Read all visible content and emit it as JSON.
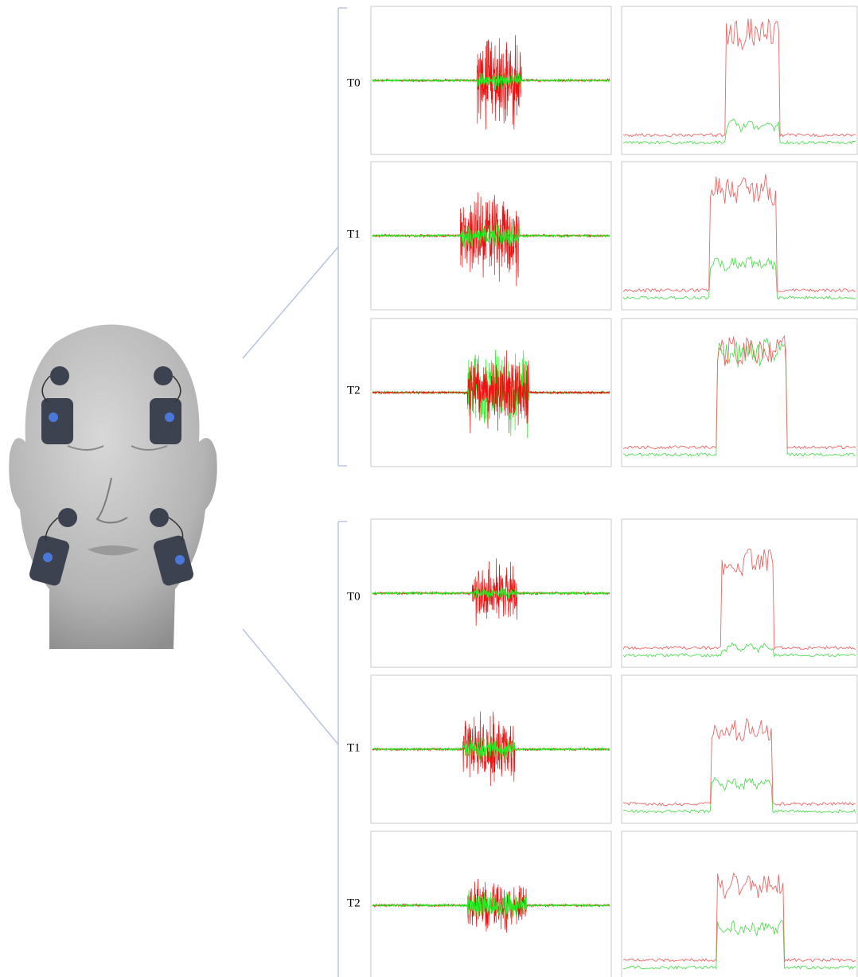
{
  "groups": [
    {
      "rows": [
        {
          "label": "T0"
        },
        {
          "label": "T1"
        },
        {
          "label": "T2"
        }
      ]
    },
    {
      "rows": [
        {
          "label": "T0"
        },
        {
          "label": "T1"
        },
        {
          "label": "T2"
        }
      ]
    }
  ]
}
